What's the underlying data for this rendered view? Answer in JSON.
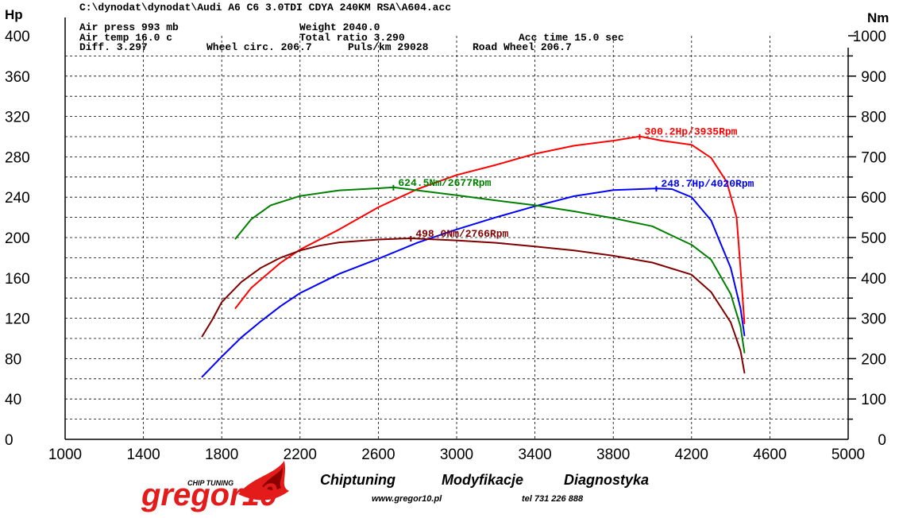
{
  "file_path": "C:\\dynodat\\dynodat\\Audi A6 C6 3.0TDI CDYA 240KM RSA\\A604.acc",
  "params": {
    "air_press": "Air press   993 mb",
    "air_temp": "Air temp   16.0 c",
    "diff": "Diff.     3.297",
    "weight": "Weight   2040.0",
    "total_ratio": "Total ratio 3.290",
    "wheel_circ": "Wheel circ. 206.7",
    "puls_km": "Puls/km   29028",
    "road_wheel": "Road Wheel 206.7",
    "acc_time": "Acc time   15.0 sec"
  },
  "chart_data": {
    "type": "line",
    "x_axis": {
      "min": 1000,
      "max": 5000,
      "ticks": [
        1000,
        1400,
        1800,
        2200,
        2600,
        3000,
        3400,
        3800,
        4200,
        4600,
        5000
      ]
    },
    "y_left": {
      "unit": "Hp",
      "min": 0,
      "max": 400,
      "ticks": [
        0,
        40,
        80,
        120,
        160,
        200,
        240,
        280,
        320,
        360,
        400
      ]
    },
    "y_right": {
      "unit": "Nm",
      "min": 0,
      "max": 1000,
      "ticks": [
        0,
        100,
        200,
        300,
        400,
        500,
        600,
        700,
        800,
        900,
        1000
      ]
    },
    "grid": true,
    "series": [
      {
        "axis": "left",
        "color": "#ff0000",
        "points": [
          [
            1870,
            130
          ],
          [
            1950,
            150
          ],
          [
            2100,
            175
          ],
          [
            2200,
            188
          ],
          [
            2400,
            208
          ],
          [
            2600,
            230
          ],
          [
            2800,
            248
          ],
          [
            3000,
            262
          ],
          [
            3200,
            272
          ],
          [
            3400,
            283
          ],
          [
            3600,
            291
          ],
          [
            3800,
            296
          ],
          [
            3935,
            300.2
          ],
          [
            4050,
            296
          ],
          [
            4200,
            292
          ],
          [
            4300,
            279
          ],
          [
            4380,
            255
          ],
          [
            4430,
            220
          ],
          [
            4450,
            170
          ],
          [
            4470,
            115
          ]
        ],
        "peak_label": "300.2Hp/3935Rpm",
        "peak": [
          3935,
          300.2
        ]
      },
      {
        "axis": "left",
        "color": "#0000ff",
        "points": [
          [
            1700,
            62
          ],
          [
            1800,
            82
          ],
          [
            1900,
            101
          ],
          [
            2000,
            117
          ],
          [
            2100,
            132
          ],
          [
            2200,
            145
          ],
          [
            2400,
            164
          ],
          [
            2600,
            179
          ],
          [
            2800,
            195
          ],
          [
            3000,
            208
          ],
          [
            3200,
            220
          ],
          [
            3400,
            231
          ],
          [
            3600,
            241
          ],
          [
            3800,
            247
          ],
          [
            4020,
            248.7
          ],
          [
            4100,
            248
          ],
          [
            4200,
            240
          ],
          [
            4300,
            217
          ],
          [
            4400,
            170
          ],
          [
            4450,
            130
          ],
          [
            4470,
            103
          ]
        ],
        "peak_label": "248.7Hp/4020Rpm",
        "peak": [
          4020,
          248.7
        ]
      },
      {
        "axis": "right",
        "color": "#008000",
        "points": [
          [
            1870,
            497
          ],
          [
            1950,
            545
          ],
          [
            2050,
            580
          ],
          [
            2200,
            603
          ],
          [
            2400,
            617
          ],
          [
            2600,
            622
          ],
          [
            2677,
            624.5
          ],
          [
            2800,
            617
          ],
          [
            3000,
            605
          ],
          [
            3200,
            592
          ],
          [
            3400,
            580
          ],
          [
            3600,
            565
          ],
          [
            3800,
            548
          ],
          [
            4000,
            528
          ],
          [
            4100,
            505
          ],
          [
            4200,
            482
          ],
          [
            4300,
            445
          ],
          [
            4400,
            360
          ],
          [
            4450,
            280
          ],
          [
            4470,
            215
          ]
        ],
        "peak_label": "624.5Nm/2677Rpm",
        "peak": [
          2677,
          624.5
        ]
      },
      {
        "axis": "right",
        "color": "#800000",
        "points": [
          [
            1700,
            255
          ],
          [
            1750,
            295
          ],
          [
            1800,
            340
          ],
          [
            1900,
            390
          ],
          [
            2000,
            425
          ],
          [
            2100,
            450
          ],
          [
            2200,
            468
          ],
          [
            2300,
            480
          ],
          [
            2400,
            488
          ],
          [
            2600,
            495
          ],
          [
            2766,
            498
          ],
          [
            3000,
            493
          ],
          [
            3200,
            487
          ],
          [
            3400,
            478
          ],
          [
            3600,
            468
          ],
          [
            3800,
            455
          ],
          [
            4000,
            438
          ],
          [
            4200,
            408
          ],
          [
            4300,
            365
          ],
          [
            4400,
            290
          ],
          [
            4450,
            220
          ],
          [
            4470,
            165
          ]
        ],
        "peak_label": "498.0Nm/2766Rpm",
        "peak": [
          2766,
          498.0
        ]
      }
    ]
  },
  "footer": {
    "slogan_1": "Chiptuning",
    "slogan_2": "Modyfikacje",
    "slogan_3": "Diagnostyka",
    "website": "www.gregor10.pl",
    "phone": "tel 731 226 888",
    "logo_text": "gregor10",
    "logo_tagline": "CHIP TUNING"
  }
}
